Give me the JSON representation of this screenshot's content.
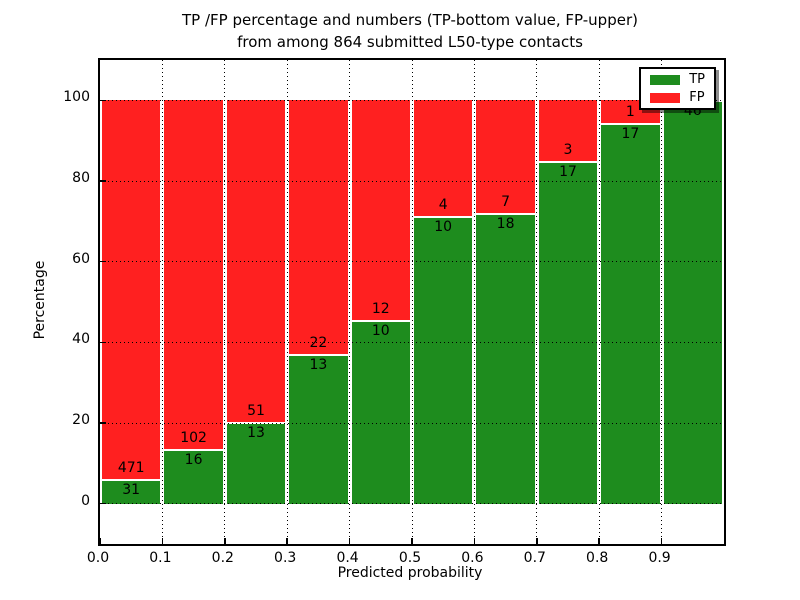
{
  "figure": {
    "title_line1": "TP /FP percentage and numbers (TP-bottom value, FP-upper)",
    "title_line2": "from among 864 submitted L50-type contacts",
    "background_color": "#ffffff"
  },
  "chart_data": {
    "type": "bar",
    "stacked": true,
    "normalized_to_percent": true,
    "title": "TP /FP percentage and numbers (TP-bottom value, FP-upper) from among 864 submitted L50-type contacts",
    "xlabel": "Predicted probability",
    "ylabel": "Percentage",
    "xlim": [
      0.0,
      1.0
    ],
    "ylim": [
      -10,
      110
    ],
    "bin_width": 0.1,
    "grid": true,
    "categories": [
      "0.0-0.1",
      "0.1-0.2",
      "0.2-0.3",
      "0.3-0.4",
      "0.4-0.5",
      "0.5-0.6",
      "0.6-0.7",
      "0.7-0.8",
      "0.8-0.9",
      "0.9-1.0"
    ],
    "bin_start_x": [
      0.0,
      0.1,
      0.2,
      0.3,
      0.4,
      0.5,
      0.6,
      0.7,
      0.8,
      0.9
    ],
    "series": [
      {
        "name": "TP",
        "color": "#1e8c1e",
        "counts": [
          31,
          16,
          13,
          13,
          10,
          10,
          18,
          17,
          17,
          46
        ]
      },
      {
        "name": "FP",
        "color": "#ff2020",
        "counts": [
          471,
          102,
          51,
          22,
          12,
          4,
          7,
          3,
          1,
          0
        ]
      }
    ],
    "tp_percent_est": [
      6.18,
      13.56,
      20.31,
      37.14,
      45.45,
      71.43,
      72.0,
      85.0,
      94.44,
      100.0
    ],
    "bar_value_labels": {
      "tp": [
        "31",
        "16",
        "13",
        "13",
        "10",
        "10",
        "18",
        "17",
        "17",
        "46"
      ],
      "fp": [
        "471",
        "102",
        "51",
        "22",
        "12",
        "4",
        "7",
        "3",
        "1",
        ""
      ]
    },
    "x_tick_labels": [
      "0.0",
      "0.1",
      "0.2",
      "0.3",
      "0.4",
      "0.5",
      "0.6",
      "0.7",
      "0.8",
      "0.9"
    ],
    "y_tick_values": [
      0,
      20,
      40,
      60,
      80,
      100
    ],
    "y_tick_labels": [
      "0",
      "20",
      "40",
      "60",
      "80",
      "100"
    ],
    "legend": {
      "position": "upper right",
      "entries": [
        {
          "label": "TP",
          "color": "#1e8c1e"
        },
        {
          "label": "FP",
          "color": "#ff2020"
        }
      ]
    }
  }
}
